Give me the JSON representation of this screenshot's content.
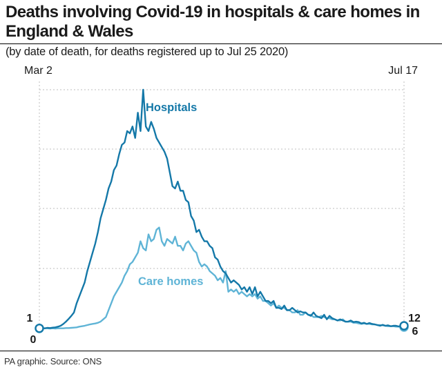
{
  "title": "Deaths involving Covid-19 in hospitals & care homes in England & Wales",
  "subtitle": "(by date of death, for deaths registered up to Jul 25 2020)",
  "source": "PA graphic. Source: ONS",
  "colors": {
    "hospitals": "#1478a8",
    "care_homes": "#5fb4d6",
    "grid": "#bdbdbd"
  },
  "chart_data": {
    "type": "line",
    "title": "Deaths involving Covid-19 in hospitals & care homes in England & Wales",
    "xlabel": "",
    "ylabel": "",
    "x_start_label": "Mar 2",
    "x_end_label": "Jul 17",
    "ylim": [
      0,
      1040
    ],
    "grid": true,
    "series": [
      {
        "name": "Hospitals",
        "start_label": "1",
        "end_label": "12",
        "values": [
          1,
          2,
          1,
          3,
          2,
          4,
          5,
          8,
          12,
          20,
          30,
          42,
          55,
          70,
          110,
          140,
          170,
          200,
          250,
          290,
          330,
          370,
          420,
          480,
          520,
          560,
          610,
          640,
          690,
          710,
          760,
          800,
          810,
          860,
          850,
          880,
          830,
          940,
          860,
          1040,
          880,
          860,
          900,
          870,
          830,
          810,
          790,
          770,
          740,
          680,
          620,
          610,
          640,
          600,
          600,
          560,
          550,
          490,
          470,
          420,
          430,
          400,
          380,
          380,
          360,
          350,
          310,
          300,
          270,
          250,
          240,
          220,
          200,
          210,
          200,
          190,
          170,
          180,
          160,
          180,
          150,
          180,
          140,
          160,
          140,
          120,
          120,
          110,
          120,
          90,
          90,
          85,
          100,
          80,
          80,
          90,
          80,
          70,
          75,
          70,
          70,
          60,
          55,
          70,
          55,
          50,
          45,
          60,
          40,
          55,
          45,
          40,
          35,
          40,
          35,
          30,
          30,
          35,
          28,
          30,
          28,
          22,
          25,
          20,
          24,
          20,
          18,
          15,
          12,
          16,
          12,
          14,
          10,
          12,
          12,
          9,
          12,
          12
        ]
      },
      {
        "name": "Care homes",
        "start_label": "0",
        "end_label": "6",
        "values": [
          0,
          1,
          1,
          1,
          0,
          1,
          0,
          1,
          1,
          1,
          2,
          2,
          3,
          4,
          5,
          8,
          10,
          12,
          15,
          18,
          20,
          22,
          25,
          30,
          40,
          50,
          80,
          110,
          140,
          160,
          180,
          200,
          230,
          250,
          280,
          290,
          310,
          330,
          380,
          350,
          340,
          410,
          380,
          390,
          430,
          440,
          380,
          360,
          390,
          380,
          370,
          400,
          360,
          360,
          340,
          370,
          380,
          360,
          340,
          330,
          290,
          270,
          280,
          270,
          250,
          240,
          230,
          210,
          220,
          200,
          250,
          160,
          170,
          160,
          170,
          150,
          160,
          150,
          140,
          150,
          140,
          150,
          130,
          140,
          120,
          120,
          110,
          100,
          110,
          90,
          100,
          90,
          90,
          80,
          80,
          70,
          70,
          80,
          60,
          60,
          70,
          60,
          60,
          50,
          50,
          50,
          55,
          50,
          45,
          45,
          40,
          40,
          35,
          35,
          40,
          30,
          30,
          30,
          25,
          25,
          22,
          20,
          22,
          20,
          20,
          18,
          18,
          15,
          15,
          14,
          12,
          10,
          10,
          10,
          8,
          8,
          6,
          6
        ]
      }
    ]
  }
}
